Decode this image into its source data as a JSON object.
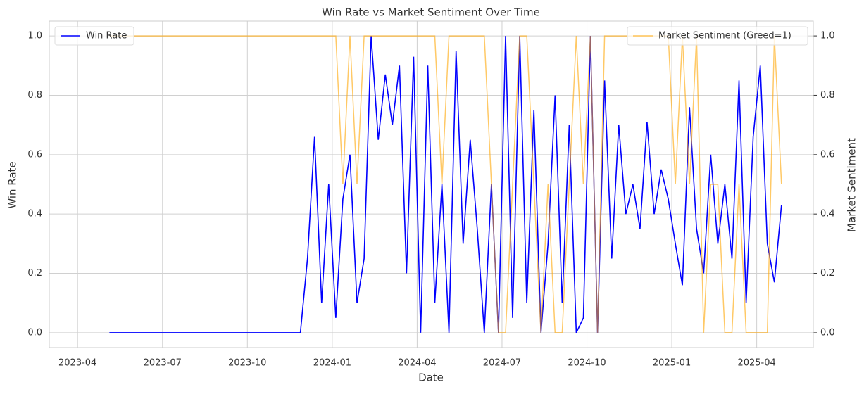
{
  "chart_data": {
    "type": "line",
    "title": "Win Rate vs Market Sentiment Over Time",
    "xlabel": "Date",
    "ylabel": "Win Rate",
    "y2label": "Market Sentiment",
    "x": [
      "2023-05",
      "2023-05",
      "2023-05",
      "2023-05",
      "2023-06",
      "2023-06",
      "2023-06",
      "2023-06",
      "2023-07",
      "2023-07",
      "2023-07",
      "2023-07",
      "2023-08",
      "2023-08",
      "2023-08",
      "2023-08",
      "2023-09",
      "2023-09",
      "2023-09",
      "2023-09",
      "2023-10",
      "2023-10",
      "2023-10",
      "2023-10",
      "2023-11",
      "2023-11",
      "2023-11",
      "2023-11",
      "2023-12",
      "2023-12",
      "2023-12",
      "2023-12",
      "2024-01",
      "2024-01",
      "2024-01",
      "2024-01",
      "2024-02",
      "2024-02",
      "2024-02",
      "2024-02",
      "2024-03",
      "2024-03",
      "2024-03",
      "2024-03",
      "2024-04",
      "2024-04",
      "2024-04",
      "2024-04",
      "2024-05",
      "2024-05",
      "2024-05",
      "2024-05",
      "2024-06",
      "2024-06",
      "2024-06",
      "2024-06",
      "2024-07",
      "2024-07",
      "2024-07",
      "2024-07",
      "2024-08",
      "2024-08",
      "2024-08",
      "2024-08",
      "2024-09",
      "2024-09",
      "2024-09",
      "2024-09",
      "2024-10",
      "2024-10",
      "2024-10",
      "2024-10",
      "2024-11",
      "2024-11",
      "2024-11",
      "2024-11",
      "2024-12",
      "2024-12",
      "2024-12",
      "2024-12",
      "2025-01",
      "2025-01",
      "2025-01",
      "2025-01",
      "2025-02",
      "2025-02",
      "2025-02",
      "2025-02",
      "2025-03",
      "2025-03",
      "2025-03",
      "2025-03",
      "2025-04",
      "2025-04",
      "2025-04",
      "2025-04"
    ],
    "series": [
      {
        "name": "Win Rate",
        "color": "#0000ff",
        "axis": "y",
        "legend_loc": "upper left",
        "values": [
          0,
          0,
          0,
          0,
          0,
          0,
          0,
          0,
          0,
          0,
          0,
          0,
          0,
          0,
          0,
          0,
          0,
          0,
          0,
          0,
          0,
          0,
          0,
          0,
          0,
          0,
          0,
          0,
          0.25,
          0.66,
          0.1,
          0.5,
          0.05,
          0.45,
          0.6,
          0.1,
          0.25,
          1.0,
          0.65,
          0.87,
          0.7,
          0.9,
          0.2,
          0.93,
          0.0,
          0.9,
          0.1,
          0.5,
          0.0,
          0.95,
          0.3,
          0.65,
          0.35,
          0.0,
          0.5,
          0.0,
          1.0,
          0.05,
          1.0,
          0.1,
          0.75,
          0.0,
          0.3,
          0.8,
          0.1,
          0.7,
          0.0,
          0.05,
          1.0,
          0.0,
          0.85,
          0.25,
          0.7,
          0.4,
          0.5,
          0.35,
          0.71,
          0.4,
          0.55,
          0.45,
          0.3,
          0.16,
          0.76,
          0.35,
          0.2,
          0.6,
          0.3,
          0.5,
          0.25,
          0.85,
          0.1,
          0.66,
          0.9,
          0.3,
          0.17,
          0.43
        ]
      },
      {
        "name": "Market Sentiment (Greed=1)",
        "color": "#ffa500",
        "axis": "y2",
        "legend_loc": "upper right",
        "values": [
          1,
          1,
          1,
          1,
          1,
          1,
          1,
          1,
          1,
          1,
          1,
          1,
          1,
          1,
          1,
          1,
          1,
          1,
          1,
          1,
          1,
          1,
          1,
          1,
          1,
          1,
          1,
          1,
          1,
          1,
          1,
          1,
          1,
          0.5,
          1,
          0.5,
          1,
          1,
          1,
          1,
          1,
          1,
          1,
          1,
          1,
          1,
          1,
          0.5,
          1,
          1,
          1,
          1,
          1,
          1,
          0.5,
          0,
          0,
          0.5,
          1,
          1,
          0.5,
          0,
          0.5,
          0,
          0,
          0.5,
          1,
          0.5,
          1,
          0,
          1,
          1,
          1,
          1,
          1,
          1,
          1,
          1,
          1,
          1,
          0.5,
          1,
          0.5,
          1,
          0,
          0.5,
          0.5,
          0,
          0,
          0.5,
          0,
          0,
          0,
          0,
          1,
          0.5
        ]
      }
    ],
    "xlim": [
      "2023-03",
      "2025-06"
    ],
    "xticks": [
      "2023-04",
      "2023-07",
      "2023-10",
      "2024-01",
      "2024-04",
      "2024-07",
      "2024-10",
      "2025-01",
      "2025-04"
    ],
    "ylim": [
      -0.05,
      1.05
    ],
    "yticks": [
      {
        "value": 0,
        "label": "0.0"
      },
      0.2,
      0.4,
      0.6,
      0.8,
      {
        "value": 1,
        "label": "1.0"
      }
    ],
    "y2lim": [
      -0.05,
      1.05
    ],
    "y2ticks": [
      {
        "value": 0,
        "label": "0.0"
      },
      0.2,
      0.4,
      0.6,
      0.8,
      {
        "value": 1,
        "label": "1.0"
      }
    ],
    "grid": true
  }
}
